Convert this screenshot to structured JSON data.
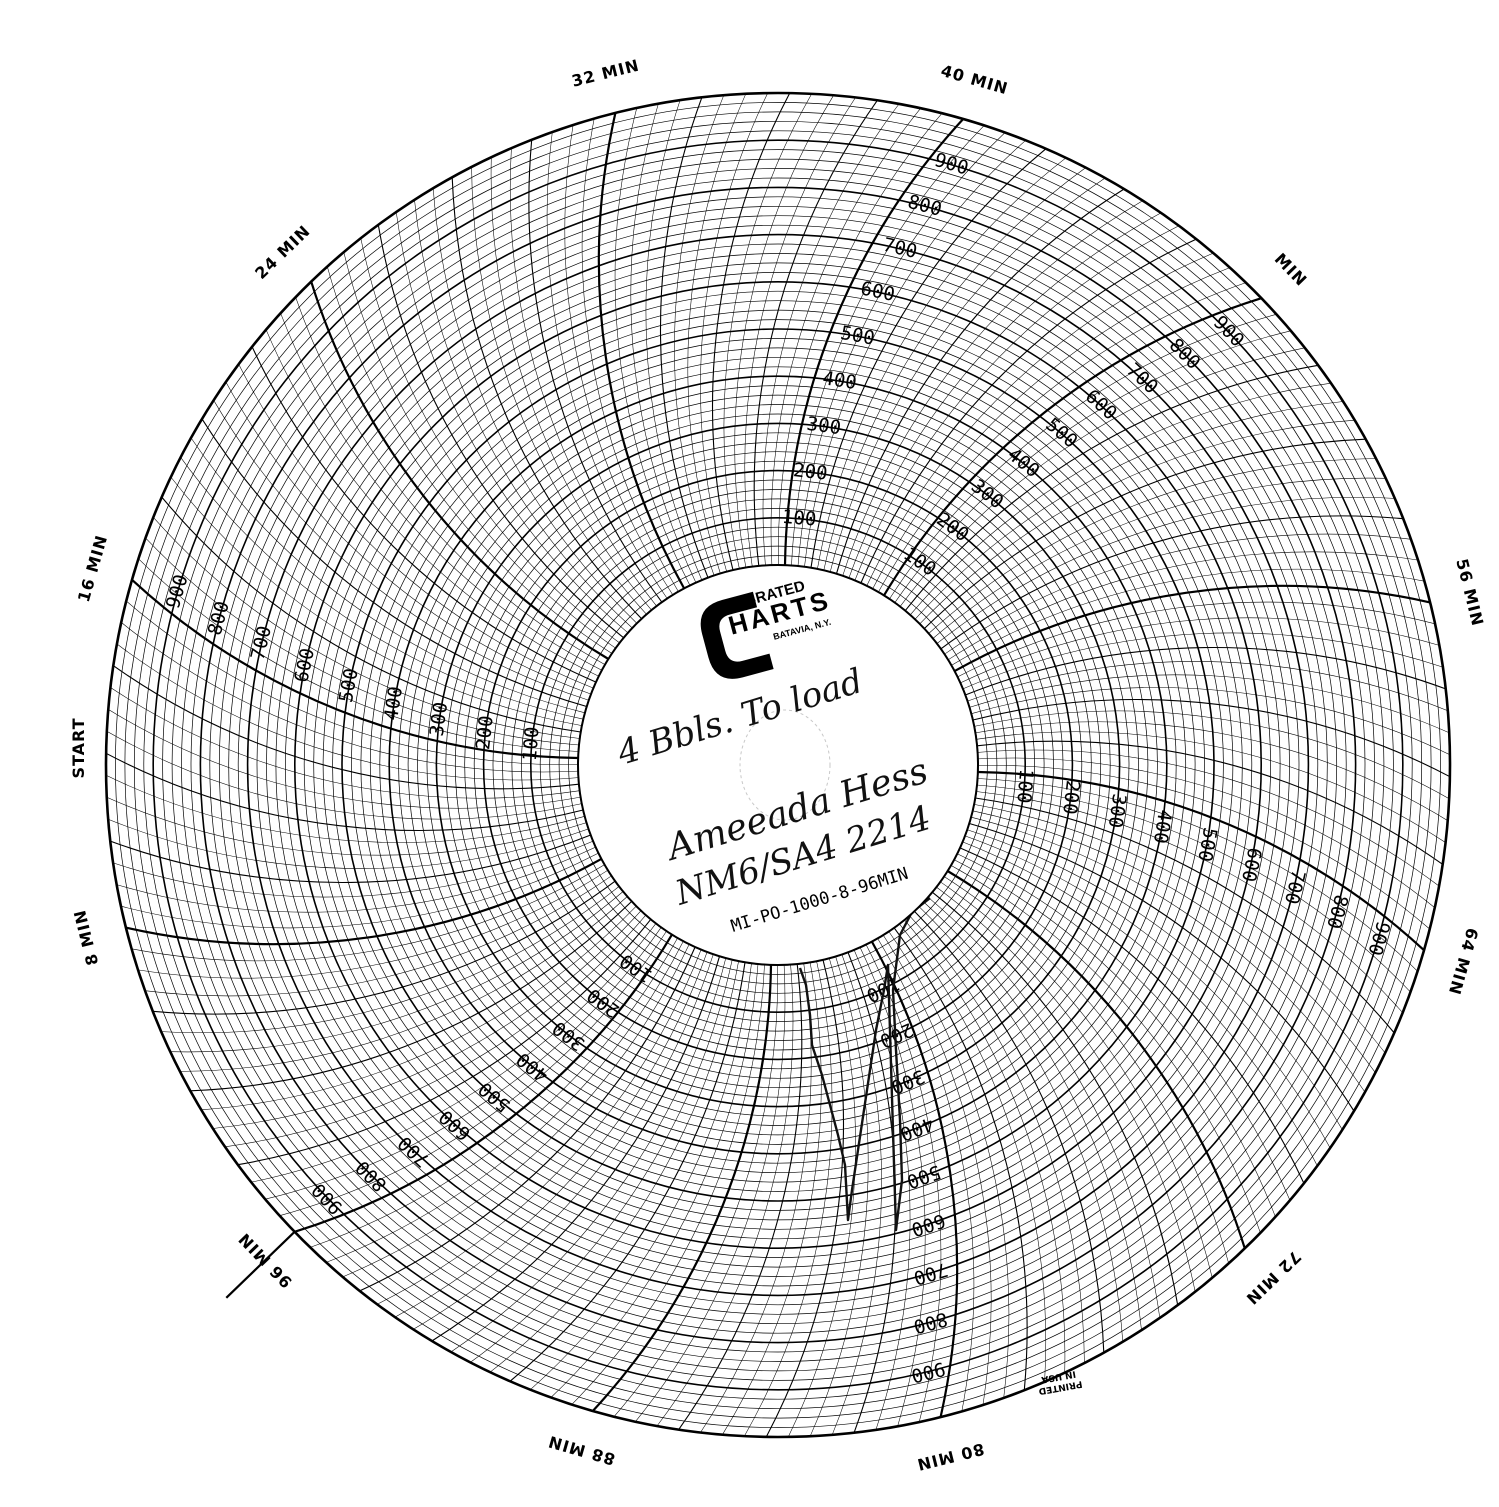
{
  "brand": {
    "line1": "ALIBRATED",
    "line2": "HARTS",
    "line3": "BATAVIA, N.Y."
  },
  "chart_info": {
    "model": "MI-PO-1000-8-96MIN",
    "printed_line1": "PRINTED",
    "printed_line2": "IN USA"
  },
  "handwriting": {
    "note1": "4 Bbls. To load",
    "note2": "Ameeada Hess",
    "note3": "NM6/SA4 2214"
  },
  "dial": {
    "start_label": "START",
    "time_labels": [
      "8 MIN",
      "16 MIN",
      "24 MIN",
      "32 MIN",
      "40 MIN",
      "MIN",
      "56 MIN",
      "64 MIN",
      "72 MIN",
      "80 MIN",
      "88 MIN",
      "96 MIN"
    ],
    "scale_labels": [
      "100",
      "200",
      "300",
      "400",
      "500",
      "600",
      "700",
      "800",
      "900"
    ],
    "scale_min": 0,
    "scale_max": 1000,
    "duration_min": 96
  },
  "colors": {
    "ink": "#000000",
    "paper": "#ffffff",
    "pen": "#1a1a1a"
  }
}
